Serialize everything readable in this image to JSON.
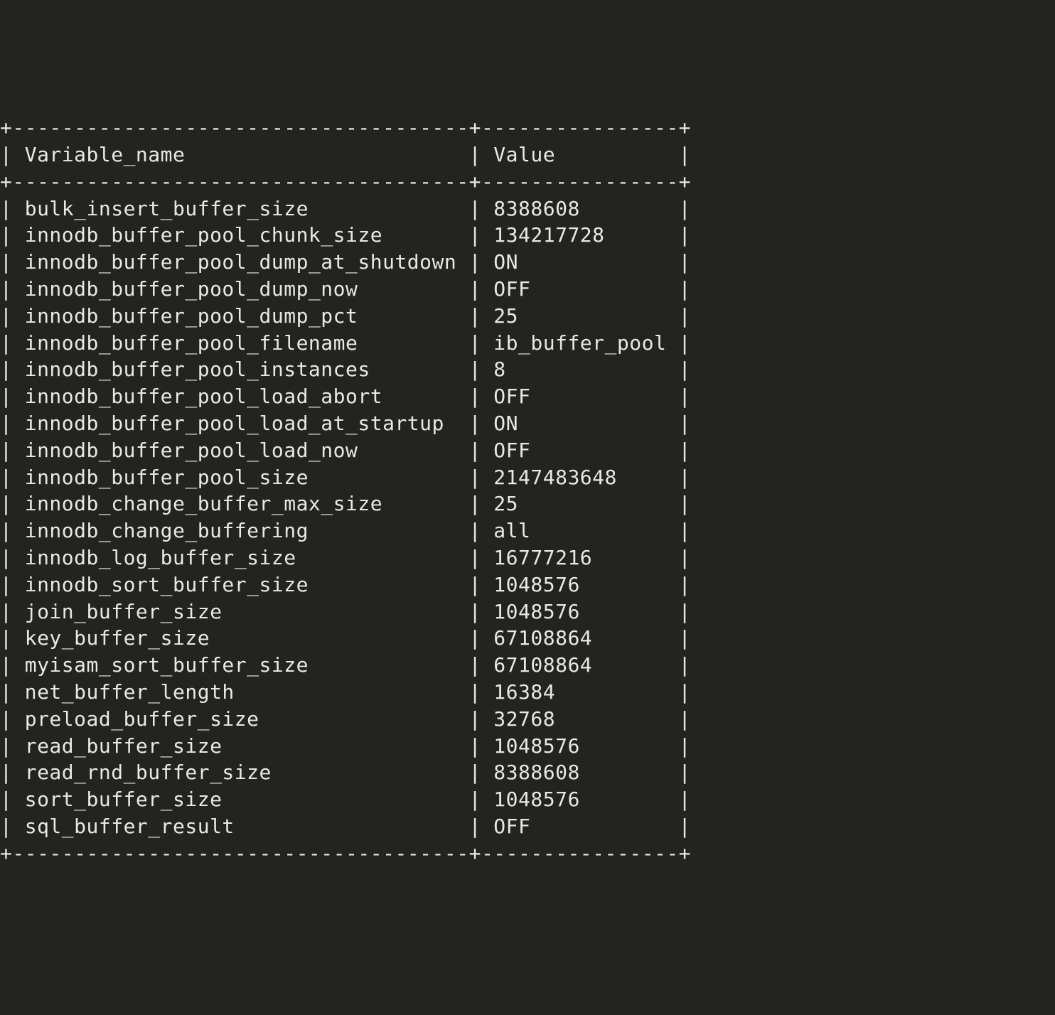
{
  "table": {
    "col1_header": "Variable_name",
    "col2_header": "Value",
    "col1_width": 37,
    "col2_width": 16,
    "background_color": "#23241f",
    "text_color": "#e8e8e4",
    "border_char_h": "-",
    "border_char_v": "|",
    "border_char_corner": "+",
    "font_family": "monospace",
    "rows": [
      {
        "name": "bulk_insert_buffer_size",
        "value": "8388608"
      },
      {
        "name": "innodb_buffer_pool_chunk_size",
        "value": "134217728"
      },
      {
        "name": "innodb_buffer_pool_dump_at_shutdown",
        "value": "ON"
      },
      {
        "name": "innodb_buffer_pool_dump_now",
        "value": "OFF"
      },
      {
        "name": "innodb_buffer_pool_dump_pct",
        "value": "25"
      },
      {
        "name": "innodb_buffer_pool_filename",
        "value": "ib_buffer_pool"
      },
      {
        "name": "innodb_buffer_pool_instances",
        "value": "8"
      },
      {
        "name": "innodb_buffer_pool_load_abort",
        "value": "OFF"
      },
      {
        "name": "innodb_buffer_pool_load_at_startup",
        "value": "ON"
      },
      {
        "name": "innodb_buffer_pool_load_now",
        "value": "OFF"
      },
      {
        "name": "innodb_buffer_pool_size",
        "value": "2147483648"
      },
      {
        "name": "innodb_change_buffer_max_size",
        "value": "25"
      },
      {
        "name": "innodb_change_buffering",
        "value": "all"
      },
      {
        "name": "innodb_log_buffer_size",
        "value": "16777216"
      },
      {
        "name": "innodb_sort_buffer_size",
        "value": "1048576"
      },
      {
        "name": "join_buffer_size",
        "value": "1048576"
      },
      {
        "name": "key_buffer_size",
        "value": "67108864"
      },
      {
        "name": "myisam_sort_buffer_size",
        "value": "67108864"
      },
      {
        "name": "net_buffer_length",
        "value": "16384"
      },
      {
        "name": "preload_buffer_size",
        "value": "32768"
      },
      {
        "name": "read_buffer_size",
        "value": "1048576"
      },
      {
        "name": "read_rnd_buffer_size",
        "value": "8388608"
      },
      {
        "name": "sort_buffer_size",
        "value": "1048576"
      },
      {
        "name": "sql_buffer_result",
        "value": "OFF"
      }
    ]
  }
}
